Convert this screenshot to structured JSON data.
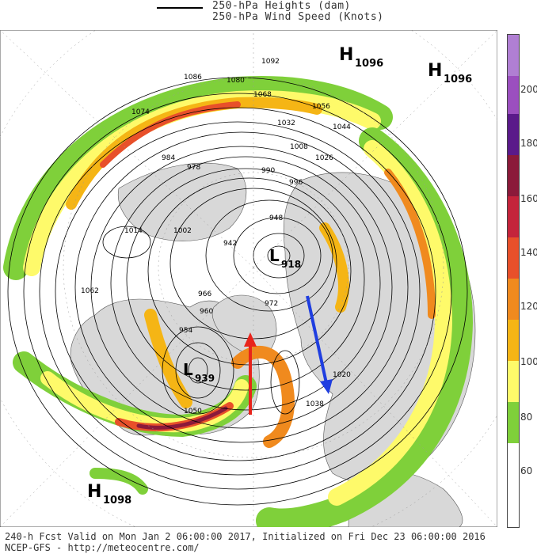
{
  "header": {
    "heights_label": "250-hPa Heights (dam)",
    "speed_label": "250-hPa Wind Speed (Knots)"
  },
  "colorbar": {
    "ticks": [
      "200",
      "180",
      "160",
      "140",
      "120",
      "100",
      "80",
      "60"
    ],
    "colors": [
      "#b07fd3",
      "#9b4fbf",
      "#5a1a8a",
      "#8b1a3a",
      "#c4243b",
      "#e8502a",
      "#f08a1e",
      "#f5b515",
      "#f8e01a",
      "#fefa6a",
      "#7fd03a",
      "#ffffff"
    ]
  },
  "centers": [
    {
      "letter": "H",
      "value": "1096"
    },
    {
      "letter": "H",
      "value": "1096"
    },
    {
      "letter": "L",
      "value": "918"
    },
    {
      "letter": "L",
      "value": "939"
    },
    {
      "letter": "H",
      "value": "1098"
    }
  ],
  "contour_labels": [
    "1092",
    "1086",
    "1080",
    "1074",
    "1068",
    "1062",
    "1056",
    "1050",
    "1044",
    "1038",
    "1032",
    "1026",
    "1020",
    "1014",
    "1008",
    "1002",
    "996",
    "990",
    "984",
    "978",
    "972",
    "966",
    "960",
    "954",
    "948",
    "942"
  ],
  "arrows": [
    {
      "color": "#e8241b"
    },
    {
      "color": "#1f3ee0"
    }
  ],
  "footer": {
    "line1": "240-h Fcst Valid on Mon Jan  2 06:00:00 2017, Initialized on Fri Dec 23 06:00:00 2016",
    "line2": "NCEP-GFS  - http://meteocentre.com/"
  }
}
